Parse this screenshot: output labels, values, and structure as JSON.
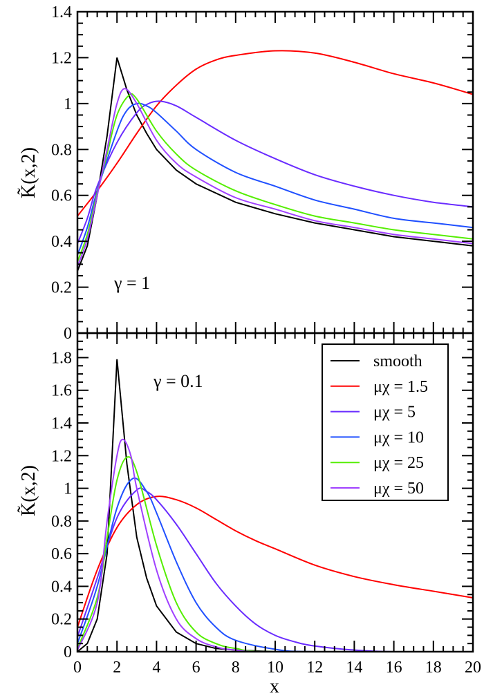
{
  "chart_data": [
    {
      "type": "line",
      "annotation": "γ = 1",
      "xlabel": "",
      "ylabel": "K̃(x,2)",
      "xlim": [
        0,
        20
      ],
      "ylim": [
        0,
        1.4
      ],
      "xticks": [
        "0",
        "2",
        "4",
        "6",
        "8",
        "10",
        "12",
        "14",
        "16",
        "18",
        "20"
      ],
      "yticks": [
        "0",
        "0.2",
        "0.4",
        "0.6",
        "0.8",
        "1",
        "1.2",
        "1.4"
      ],
      "show_xtick_labels": false,
      "grid": false,
      "series": [
        {
          "name": "smooth",
          "color": "#000000",
          "x": [
            0,
            0.5,
            1,
            1.5,
            2,
            2.5,
            3,
            3.5,
            4,
            5,
            6,
            8,
            10,
            12,
            14,
            16,
            18,
            20
          ],
          "y": [
            0.27,
            0.38,
            0.6,
            0.86,
            1.2,
            1.06,
            0.95,
            0.87,
            0.8,
            0.71,
            0.65,
            0.57,
            0.52,
            0.48,
            0.45,
            0.42,
            0.4,
            0.38
          ]
        },
        {
          "name": "μχ = 1.5",
          "color": "#ff0000",
          "x": [
            0,
            1,
            2,
            3,
            4,
            5,
            6,
            7,
            8,
            10,
            12,
            14,
            16,
            18,
            20
          ],
          "y": [
            0.51,
            0.62,
            0.74,
            0.87,
            0.99,
            1.08,
            1.15,
            1.19,
            1.21,
            1.23,
            1.22,
            1.18,
            1.13,
            1.09,
            1.04
          ]
        },
        {
          "name": "μχ = 5",
          "color": "#6a2cff",
          "x": [
            0,
            0.5,
            1,
            2,
            3,
            3.6,
            4.2,
            5,
            6,
            8,
            10,
            12,
            14,
            16,
            18,
            20
          ],
          "y": [
            0.39,
            0.5,
            0.64,
            0.83,
            0.96,
            1.0,
            1.01,
            0.99,
            0.94,
            0.84,
            0.76,
            0.69,
            0.64,
            0.6,
            0.57,
            0.55
          ]
        },
        {
          "name": "μχ = 10",
          "color": "#2050ff",
          "x": [
            0,
            0.5,
            1,
            2,
            2.5,
            3,
            3.5,
            4,
            5,
            6,
            8,
            10,
            12,
            14,
            16,
            18,
            20
          ],
          "y": [
            0.34,
            0.46,
            0.62,
            0.88,
            0.97,
            1.0,
            0.99,
            0.96,
            0.88,
            0.8,
            0.7,
            0.64,
            0.58,
            0.54,
            0.5,
            0.48,
            0.46
          ]
        },
        {
          "name": "μχ = 25",
          "color": "#55ee00",
          "x": [
            0,
            0.5,
            1,
            1.5,
            2,
            2.6,
            3,
            4,
            5,
            6,
            8,
            10,
            12,
            14,
            16,
            18,
            20
          ],
          "y": [
            0.31,
            0.43,
            0.61,
            0.78,
            0.95,
            1.035,
            1.02,
            0.88,
            0.78,
            0.71,
            0.62,
            0.56,
            0.51,
            0.48,
            0.45,
            0.43,
            0.41
          ]
        },
        {
          "name": "μχ = 50",
          "color": "#a040ff",
          "x": [
            0,
            0.5,
            1,
            1.5,
            2,
            2.4,
            3,
            4,
            5,
            6,
            8,
            10,
            12,
            14,
            16,
            18,
            20
          ],
          "y": [
            0.29,
            0.41,
            0.6,
            0.8,
            1.0,
            1.065,
            1.0,
            0.84,
            0.74,
            0.68,
            0.59,
            0.54,
            0.49,
            0.46,
            0.43,
            0.41,
            0.39
          ]
        }
      ]
    },
    {
      "type": "line",
      "annotation": "γ = 0.1",
      "xlabel": "x",
      "ylabel": "K̃(x,2)",
      "xlim": [
        0,
        20
      ],
      "ylim": [
        0,
        1.95
      ],
      "xticks": [
        "0",
        "2",
        "4",
        "6",
        "8",
        "10",
        "12",
        "14",
        "16",
        "18",
        "20"
      ],
      "yticks": [
        "0",
        "0.2",
        "0.4",
        "0.6",
        "0.8",
        "1",
        "1.2",
        "1.4",
        "1.6",
        "1.8"
      ],
      "grid": false,
      "legend": {
        "position": "top-right",
        "entries": [
          "smooth",
          "μχ = 1.5",
          "μχ = 5",
          "μχ = 10",
          "μχ = 25",
          "μχ = 50"
        ]
      },
      "series": [
        {
          "name": "smooth",
          "color": "#000000",
          "x": [
            0,
            0.5,
            1,
            1.5,
            2,
            2.5,
            3,
            3.5,
            4,
            5,
            6,
            7,
            8,
            10,
            20
          ],
          "y": [
            0,
            0.05,
            0.2,
            0.6,
            1.79,
            1.15,
            0.7,
            0.45,
            0.28,
            0.12,
            0.05,
            0.02,
            0.01,
            0,
            0
          ]
        },
        {
          "name": "μχ = 1.5",
          "color": "#ff0000",
          "x": [
            0,
            1,
            2,
            3,
            4,
            5,
            6,
            7,
            8,
            9,
            10,
            12,
            14,
            16,
            18,
            20
          ],
          "y": [
            0.15,
            0.5,
            0.76,
            0.9,
            0.95,
            0.93,
            0.88,
            0.81,
            0.74,
            0.68,
            0.63,
            0.53,
            0.46,
            0.41,
            0.37,
            0.33
          ]
        },
        {
          "name": "μχ = 5",
          "color": "#6a2cff",
          "x": [
            0,
            1,
            2,
            3,
            3.5,
            4,
            5,
            6,
            7,
            8,
            9,
            10,
            11,
            12,
            14,
            16,
            20
          ],
          "y": [
            0.09,
            0.45,
            0.82,
            0.99,
            0.98,
            0.93,
            0.78,
            0.6,
            0.42,
            0.28,
            0.17,
            0.1,
            0.06,
            0.035,
            0.01,
            0,
            0
          ]
        },
        {
          "name": "μχ = 10",
          "color": "#2050ff",
          "x": [
            0,
            1,
            2,
            2.8,
            3.5,
            4,
            5,
            6,
            7,
            8,
            10,
            12,
            20
          ],
          "y": [
            0.05,
            0.4,
            0.88,
            1.06,
            0.98,
            0.85,
            0.55,
            0.3,
            0.15,
            0.07,
            0.015,
            0,
            0
          ]
        },
        {
          "name": "μχ = 25",
          "color": "#55ee00",
          "x": [
            0,
            1,
            1.5,
            2,
            2.5,
            3,
            4,
            5,
            6,
            7,
            8,
            10,
            20
          ],
          "y": [
            0.02,
            0.33,
            0.7,
            1.05,
            1.19,
            1.1,
            0.65,
            0.3,
            0.12,
            0.05,
            0.02,
            0,
            0
          ]
        },
        {
          "name": "μχ = 50",
          "color": "#a040ff",
          "x": [
            0,
            1,
            1.5,
            2,
            2.3,
            2.7,
            3,
            4,
            5,
            6,
            7,
            8,
            10,
            20
          ],
          "y": [
            0.01,
            0.3,
            0.8,
            1.2,
            1.3,
            1.2,
            1.0,
            0.5,
            0.2,
            0.08,
            0.03,
            0.01,
            0,
            0
          ]
        }
      ]
    }
  ]
}
